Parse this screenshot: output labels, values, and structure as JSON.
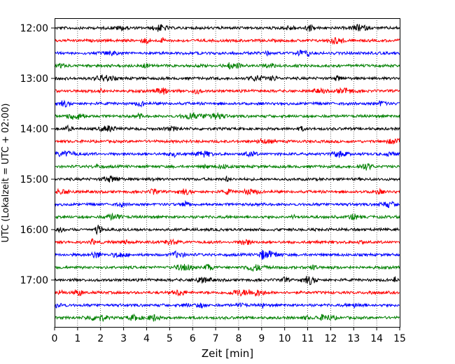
{
  "chart_data": {
    "type": "line",
    "title": "",
    "xlabel": "Zeit  [min]",
    "ylabel": "UTC (Lokalzeit = UTC + 02:00)",
    "xlim": [
      0,
      15
    ],
    "x_ticks": [
      "0",
      "1",
      "2",
      "3",
      "4",
      "5",
      "6",
      "7",
      "8",
      "9",
      "10",
      "11",
      "12",
      "13",
      "14",
      "15"
    ],
    "y_ticks": [
      "12:00",
      "13:00",
      "14:00",
      "15:00",
      "16:00",
      "17:00"
    ],
    "grid": "vertical dotted at each minute",
    "trace_interval_min": 15,
    "trace_start": "12:00",
    "trace_end": "17:45",
    "color_cycle": [
      "#000000",
      "#ff0000",
      "#0000ff",
      "#008000"
    ],
    "series": [
      {
        "start": "12:00",
        "color": "#000000"
      },
      {
        "start": "12:15",
        "color": "#ff0000"
      },
      {
        "start": "12:30",
        "color": "#0000ff"
      },
      {
        "start": "12:45",
        "color": "#008000"
      },
      {
        "start": "13:00",
        "color": "#000000"
      },
      {
        "start": "13:15",
        "color": "#ff0000"
      },
      {
        "start": "13:30",
        "color": "#0000ff"
      },
      {
        "start": "13:45",
        "color": "#008000"
      },
      {
        "start": "14:00",
        "color": "#000000"
      },
      {
        "start": "14:15",
        "color": "#ff0000"
      },
      {
        "start": "14:30",
        "color": "#0000ff"
      },
      {
        "start": "14:45",
        "color": "#008000"
      },
      {
        "start": "15:00",
        "color": "#000000"
      },
      {
        "start": "15:15",
        "color": "#ff0000"
      },
      {
        "start": "15:30",
        "color": "#0000ff"
      },
      {
        "start": "15:45",
        "color": "#008000"
      },
      {
        "start": "16:00",
        "color": "#000000"
      },
      {
        "start": "16:15",
        "color": "#ff0000"
      },
      {
        "start": "16:30",
        "color": "#0000ff"
      },
      {
        "start": "16:45",
        "color": "#008000"
      },
      {
        "start": "17:00",
        "color": "#000000"
      },
      {
        "start": "17:15",
        "color": "#ff0000"
      },
      {
        "start": "17:30",
        "color": "#0000ff"
      },
      {
        "start": "17:45",
        "color": "#008000"
      }
    ]
  }
}
